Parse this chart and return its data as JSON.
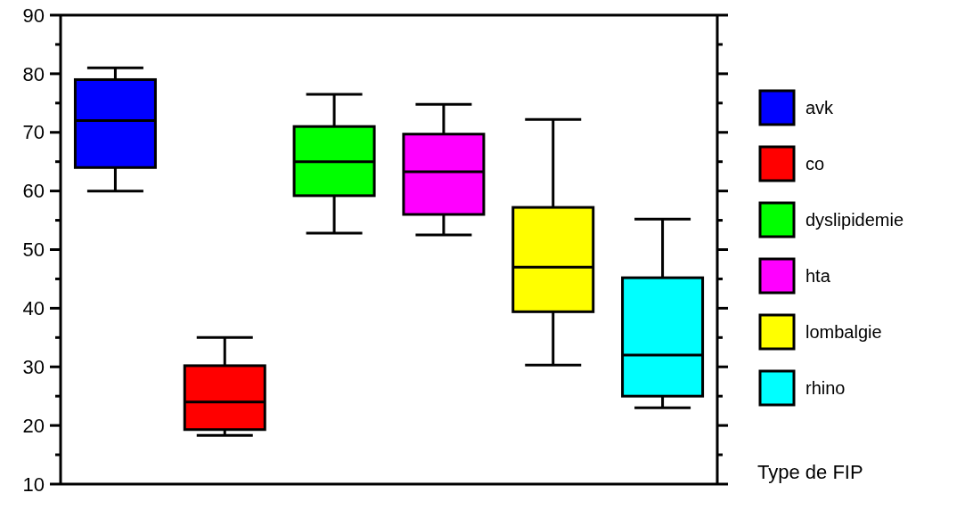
{
  "chart_data": {
    "type": "box",
    "categories": [
      null,
      null,
      null,
      null,
      null,
      null
    ],
    "legend_title": "Type de FIP",
    "legend": "right",
    "ylim": [
      10,
      90
    ],
    "yticks": [
      10,
      {
        "value": 15,
        "label": null
      },
      20,
      {
        "value": 25,
        "label": null
      },
      30,
      {
        "value": 35,
        "label": null
      },
      40,
      {
        "value": 45,
        "label": null
      },
      50,
      {
        "value": 55,
        "label": null
      },
      60,
      {
        "value": 65,
        "label": null
      },
      70,
      {
        "value": 75,
        "label": null
      },
      80,
      {
        "value": 85,
        "label": null
      },
      90
    ],
    "series": [
      {
        "name": "avk",
        "color": "#0000ff",
        "boxes": [
          {
            "low": 60,
            "q1": 64,
            "median": 72,
            "q3": 79,
            "high": 81
          },
          null,
          null,
          null,
          null,
          null
        ]
      },
      {
        "name": "co",
        "color": "#ff0000",
        "boxes": [
          null,
          {
            "low": 18.3,
            "q1": 19.3,
            "median": 24,
            "q3": 30.2,
            "high": 35
          },
          null,
          null,
          null,
          null
        ]
      },
      {
        "name": "dyslipidemie",
        "color": "#00ff00",
        "boxes": [
          null,
          null,
          {
            "low": 52.8,
            "q1": 59.2,
            "median": 65,
            "q3": 71,
            "high": 76.5
          },
          null,
          null,
          null
        ]
      },
      {
        "name": "hta",
        "color": "#ff00ff",
        "boxes": [
          null,
          null,
          null,
          {
            "low": 52.5,
            "q1": 56,
            "median": 63.3,
            "q3": 69.7,
            "high": 74.8
          },
          null,
          null
        ]
      },
      {
        "name": "lombalgie",
        "color": "#ffff00",
        "boxes": [
          null,
          null,
          null,
          null,
          {
            "low": 30.3,
            "q1": 39.4,
            "median": 47,
            "q3": 57.2,
            "high": 72.2
          },
          null
        ]
      },
      {
        "name": "rhino",
        "color": "#00ffff",
        "boxes": [
          null,
          null,
          null,
          null,
          null,
          {
            "low": 23,
            "q1": 25,
            "median": 32,
            "q3": 45.2,
            "high": 55.2
          }
        ]
      }
    ]
  }
}
